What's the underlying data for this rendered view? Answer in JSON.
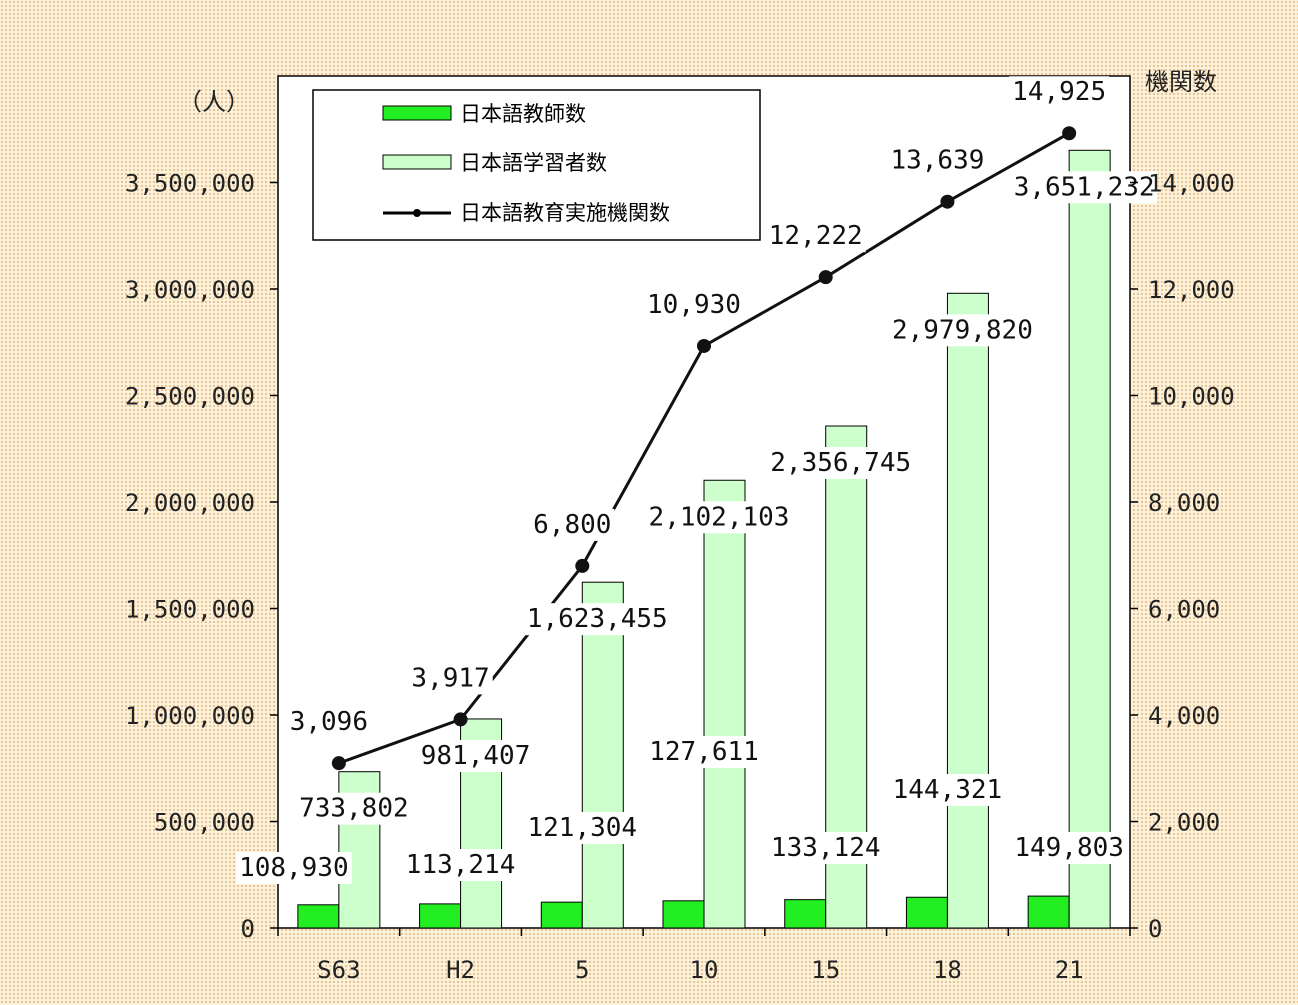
{
  "chart_data": {
    "type": "bar",
    "categories": [
      "S63",
      "H2",
      "5",
      "10",
      "15",
      "18",
      "21"
    ],
    "left_axis": {
      "unit_label": "（人）",
      "ylim": [
        0,
        4000000
      ],
      "ticks": [
        0,
        500000,
        1000000,
        1500000,
        2000000,
        2500000,
        3000000,
        3500000
      ]
    },
    "right_axis": {
      "unit_label": "機関数",
      "ylim": [
        0,
        16000
      ],
      "ticks": [
        0,
        2000,
        4000,
        6000,
        8000,
        10000,
        12000,
        14000
      ]
    },
    "series": [
      {
        "name": "日本語教師数",
        "type": "bar",
        "axis": "left",
        "color": "#22ee22",
        "values": [
          108930,
          113214,
          121304,
          127611,
          133124,
          144321,
          149803
        ]
      },
      {
        "name": "日本語学習者数",
        "type": "bar",
        "axis": "left",
        "color": "#ccffcc",
        "values": [
          733802,
          981407,
          1623455,
          2102103,
          2356745,
          2979820,
          3651232
        ]
      },
      {
        "name": "日本語教育実施機関数",
        "type": "line",
        "axis": "right",
        "color": "#111111",
        "values": [
          3096,
          3917,
          6800,
          10930,
          12222,
          13639,
          14925
        ]
      }
    ],
    "grid": false,
    "legend_position": "top-left"
  }
}
